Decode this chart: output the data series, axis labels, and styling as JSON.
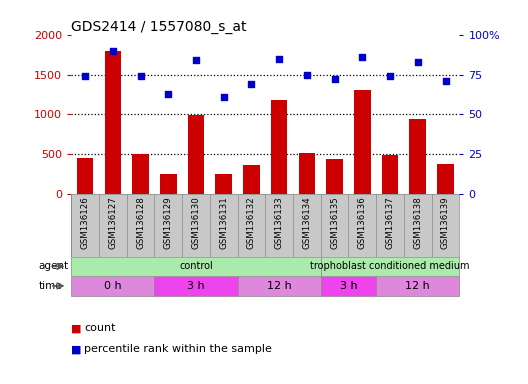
{
  "title": "GDS2414 / 1557080_s_at",
  "categories": [
    "GSM136126",
    "GSM136127",
    "GSM136128",
    "GSM136129",
    "GSM136130",
    "GSM136131",
    "GSM136132",
    "GSM136133",
    "GSM136134",
    "GSM136135",
    "GSM136136",
    "GSM136137",
    "GSM136138",
    "GSM136139"
  ],
  "counts": [
    450,
    1800,
    500,
    260,
    990,
    260,
    370,
    1180,
    520,
    440,
    1310,
    490,
    940,
    380
  ],
  "percentiles": [
    74,
    90,
    74,
    63,
    84,
    61,
    69,
    85,
    75,
    72,
    86,
    74,
    83,
    71
  ],
  "left_ylim": [
    0,
    2000
  ],
  "left_yticks": [
    0,
    500,
    1000,
    1500,
    2000
  ],
  "right_ylim": [
    0,
    100
  ],
  "right_yticks": [
    0,
    25,
    50,
    75,
    100
  ],
  "right_yticklabels": [
    "0",
    "25",
    "50",
    "75",
    "100%"
  ],
  "bar_color": "#cc0000",
  "dot_color": "#0000cc",
  "left_tick_color": "#cc0000",
  "right_tick_color": "#0000cc",
  "agent_segments": [
    {
      "label": "control",
      "start": 0,
      "end": 9,
      "color": "#aaeaaa"
    },
    {
      "label": "trophoblast conditioned medium",
      "start": 9,
      "end": 14,
      "color": "#aaeaaa"
    }
  ],
  "time_segments": [
    {
      "label": "0 h",
      "start": 0,
      "end": 3,
      "color": "#dd88dd"
    },
    {
      "label": "3 h",
      "start": 3,
      "end": 6,
      "color": "#ee44ee"
    },
    {
      "label": "12 h",
      "start": 6,
      "end": 9,
      "color": "#dd88dd"
    },
    {
      "label": "3 h",
      "start": 9,
      "end": 11,
      "color": "#ee44ee"
    },
    {
      "label": "12 h",
      "start": 11,
      "end": 14,
      "color": "#dd88dd"
    }
  ],
  "legend_count_color": "#cc0000",
  "legend_percentile_color": "#0000cc",
  "bg_color": "#ffffff",
  "plot_bg_color": "#ffffff",
  "label_area_color": "#c8c8c8",
  "grid_dotted_color": "#555555",
  "n": 14
}
